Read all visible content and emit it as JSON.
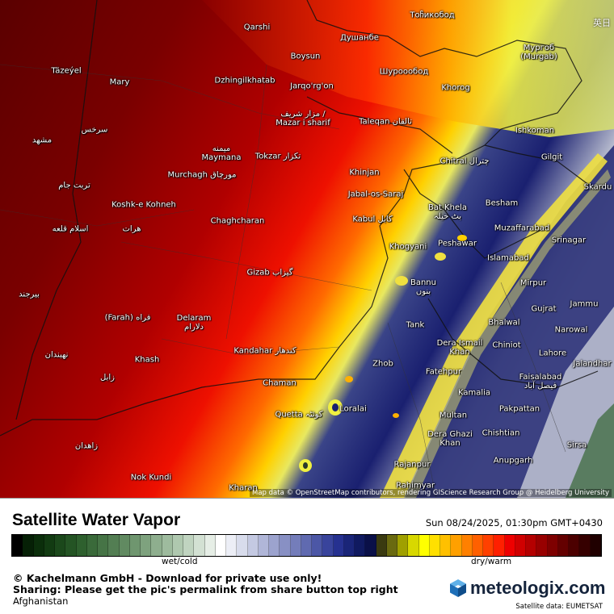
{
  "title": "Satellite Water Vapor",
  "timestamp": "Sun 08/24/2025, 01:30pm GMT+0430",
  "region": "Afghanistan",
  "legend": {
    "label_left": "wet/cold",
    "label_right": "dry/warm",
    "colors": [
      "#000000",
      "#062006",
      "#0b2e0b",
      "#123b12",
      "#1b481b",
      "#245424",
      "#2e602e",
      "#3a6a3a",
      "#467446",
      "#537e53",
      "#618a61",
      "#6f966f",
      "#7ea27e",
      "#8eae8e",
      "#9ebb9e",
      "#afc8af",
      "#c0d4c0",
      "#d3e1d3",
      "#e6eee6",
      "#ffffff",
      "#eceef6",
      "#d8dcec",
      "#c4c9e2",
      "#b0b6d8",
      "#9ca3ce",
      "#8890c4",
      "#747dba",
      "#606ab0",
      "#4c57a6",
      "#39449c",
      "#263190",
      "#1a2578",
      "#101a60",
      "#0a1048",
      "#3a3a10",
      "#6a6a10",
      "#a0a000",
      "#d8d800",
      "#ffff00",
      "#ffe000",
      "#ffc000",
      "#ffa000",
      "#ff8000",
      "#ff6000",
      "#ff4000",
      "#ff2000",
      "#ee0000",
      "#d00000",
      "#b40000",
      "#980000",
      "#7e0000",
      "#640000",
      "#4c0000",
      "#360000",
      "#200000"
    ]
  },
  "copyright": "© Kachelmann GmbH - Download for private use only!",
  "sharing_note": "Sharing: Please get the pic's permalink from share button top right",
  "logo": {
    "text": "meteologix.com",
    "icon": "cube-logo-icon"
  },
  "satellite_source": "Satellite data: EUMETSAT",
  "map_attribution": "Map data © OpenStreetMap contributors, rendering GIScience Research Group @ Heidelberg University",
  "language_icon": "英日",
  "places": [
    {
      "name": "Qarshi"
    },
    {
      "name": "Душанбе"
    },
    {
      "name": "Тоჩикобод"
    },
    {
      "name": "Boysun"
    },
    {
      "name": "Шуроообод"
    },
    {
      "name": "Мургоб (Murgab)"
    },
    {
      "name": "Täzeýel"
    },
    {
      "name": "Mary"
    },
    {
      "name": "Dzhingilkhatab"
    },
    {
      "name": "Jarqo'rg'on"
    },
    {
      "name": "Khorog"
    },
    {
      "name": "مزار شريف / Mazar i sharif"
    },
    {
      "name": "Taleqan تالقان"
    },
    {
      "name": "Ishkoman"
    },
    {
      "name": "سرخس"
    },
    {
      "name": "مشهد"
    },
    {
      "name": "میمنه Maymana"
    },
    {
      "name": "Tokzar تکزار"
    },
    {
      "name": "Gilgit"
    },
    {
      "name": "Chitral چترال"
    },
    {
      "name": "تربت جام"
    },
    {
      "name": "Murchagh مورچاق"
    },
    {
      "name": "Khinjan"
    },
    {
      "name": "Skardu"
    },
    {
      "name": "Jabal-os-Saraj"
    },
    {
      "name": "Koshk-e Kohneh"
    },
    {
      "name": "Besham"
    },
    {
      "name": "Bat Khela بٹ خیلہ"
    },
    {
      "name": "Chaghcharan"
    },
    {
      "name": "Kabul کابل"
    },
    {
      "name": "اسلام قلعه"
    },
    {
      "name": "هرات"
    },
    {
      "name": "Muzaffarabad"
    },
    {
      "name": "Peshawar"
    },
    {
      "name": "Srinagar"
    },
    {
      "name": "Khogyani"
    },
    {
      "name": "Islamabad"
    },
    {
      "name": "Gizab گیزاب"
    },
    {
      "name": "Mirpur"
    },
    {
      "name": "بیرجند"
    },
    {
      "name": "Bannu بنوں"
    },
    {
      "name": "Gujrat"
    },
    {
      "name": "Jammu"
    },
    {
      "name": "(Farah) فراه"
    },
    {
      "name": "Delaram دلارام"
    },
    {
      "name": "Bhalwal"
    },
    {
      "name": "Narowal"
    },
    {
      "name": "Tank"
    },
    {
      "name": "Dera Ismail Khan"
    },
    {
      "name": "Chiniot"
    },
    {
      "name": "Lahore"
    },
    {
      "name": "نهبندان"
    },
    {
      "name": "Kandahar کندهار"
    },
    {
      "name": "Khash"
    },
    {
      "name": "Jalandhar"
    },
    {
      "name": "Zhob"
    },
    {
      "name": "Faisalabad فیصل آباد"
    },
    {
      "name": "زابل"
    },
    {
      "name": "Fatehpur"
    },
    {
      "name": "Chaman"
    },
    {
      "name": "Kamalia"
    },
    {
      "name": "Quetta کوئٹہ"
    },
    {
      "name": "Loralai"
    },
    {
      "name": "Pakpattan"
    },
    {
      "name": "Multan"
    },
    {
      "name": "Dera Ghazi Khan"
    },
    {
      "name": "Chishtian"
    },
    {
      "name": "زاهدان"
    },
    {
      "name": "Sirsa"
    },
    {
      "name": "Anupgarh"
    },
    {
      "name": "Rajanpur"
    },
    {
      "name": "Nok Kundi"
    },
    {
      "name": "Kharan"
    },
    {
      "name": "Rahimyar"
    }
  ]
}
